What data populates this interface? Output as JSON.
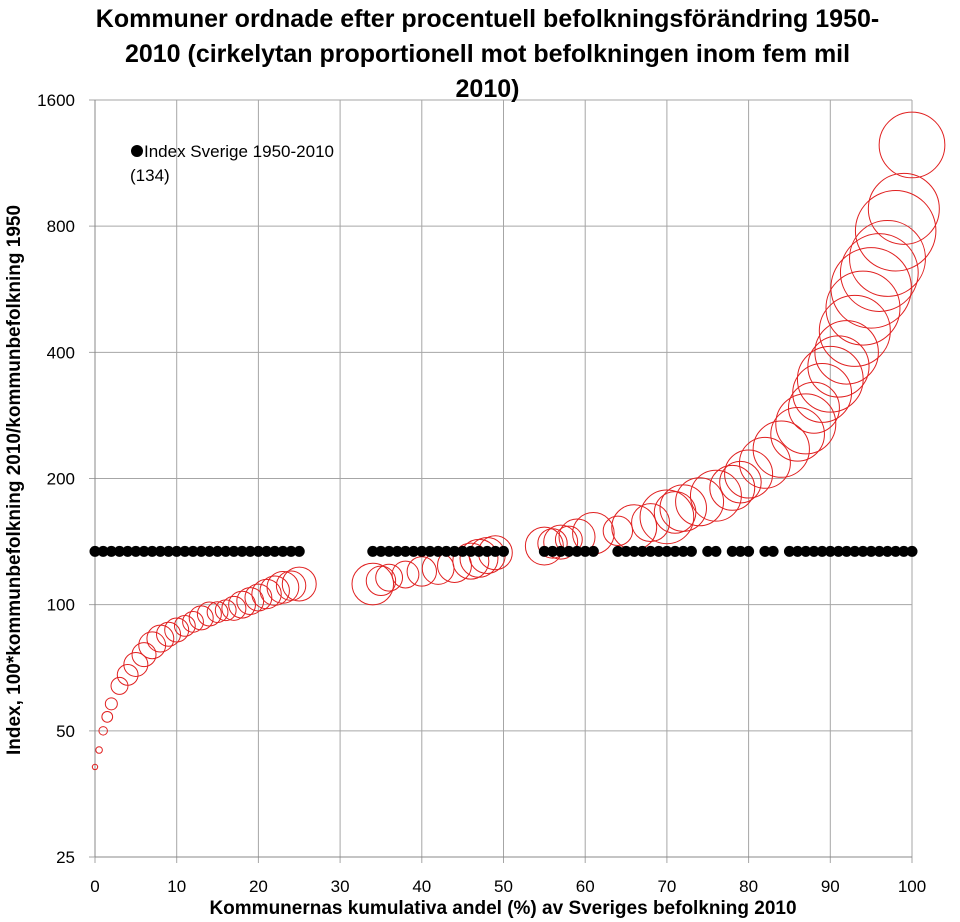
{
  "chart_data": {
    "type": "scatter",
    "title": "Kommuner ordnade efter procentuell befolkningsförändring 1950-2010 (cirkelytan proportionell mot befolkningen inom fem mil 2010)",
    "xlabel": "Kommunernas kumulativa andel (%) av Sveriges befolkning 2010",
    "ylabel": "Index, 100*kommunbefolkning 2010/kommunbefolkning 1950",
    "xlim": [
      0,
      100
    ],
    "xticks": [
      0,
      10,
      20,
      30,
      40,
      50,
      60,
      70,
      80,
      90,
      100
    ],
    "ylim": [
      25,
      1600
    ],
    "yticks": [
      25,
      50,
      100,
      200,
      400,
      800,
      1600
    ],
    "yscale": "log",
    "grid": true,
    "series": [
      {
        "color": "#e02020",
        "x": [
          0,
          0.5,
          1,
          1.5,
          2,
          3,
          4,
          5,
          6,
          7,
          8,
          9,
          10,
          11,
          12,
          13,
          14,
          15,
          16,
          17,
          18,
          19,
          20,
          21,
          22,
          23,
          24,
          25,
          34,
          35,
          36,
          38,
          40,
          42,
          44,
          46,
          47,
          48,
          49,
          55,
          56,
          57,
          58,
          59,
          61,
          64,
          66,
          68,
          70,
          71,
          72,
          74,
          76,
          78,
          79,
          80,
          82,
          84,
          86,
          87,
          88,
          89,
          90,
          91,
          92,
          93,
          94,
          95,
          96,
          97,
          98,
          99,
          100
        ],
        "values": [
          41,
          45,
          50,
          54,
          58,
          64,
          68,
          72,
          76,
          80,
          83,
          85,
          87,
          89,
          91,
          93,
          95,
          96,
          97,
          98,
          100,
          102,
          104,
          106,
          108,
          110,
          111,
          112,
          112,
          114,
          116,
          118,
          120,
          122,
          124,
          127,
          129,
          131,
          133,
          138,
          140,
          141,
          143,
          145,
          148,
          150,
          153,
          157,
          162,
          166,
          170,
          176,
          182,
          190,
          196,
          205,
          218,
          235,
          255,
          270,
          295,
          320,
          345,
          370,
          400,
          450,
          510,
          570,
          620,
          670,
          780,
          880,
          1250
        ],
        "sizes": [
          0.2,
          0.3,
          0.5,
          0.8,
          1,
          2,
          3,
          4,
          4,
          5,
          5,
          4,
          4,
          3,
          3,
          4,
          4,
          3,
          3,
          4,
          5,
          5,
          5,
          6,
          6,
          7,
          6,
          8,
          12,
          6,
          5,
          5,
          6,
          7,
          8,
          9,
          10,
          9,
          8,
          10,
          6,
          8,
          5,
          9,
          12,
          6,
          14,
          10,
          20,
          12,
          15,
          16,
          18,
          14,
          12,
          16,
          18,
          22,
          20,
          25,
          18,
          24,
          30,
          26,
          28,
          35,
          38,
          45,
          42,
          40,
          45,
          35,
          30
        ]
      },
      {
        "name": "Index Sverige 1950-2010 (134)",
        "color": "#000000",
        "x": [
          0,
          1,
          2,
          3,
          4,
          5,
          6,
          7,
          8,
          9,
          10,
          11,
          12,
          13,
          14,
          15,
          16,
          17,
          18,
          19,
          20,
          21,
          22,
          23,
          24,
          25,
          34,
          35,
          36,
          37,
          38,
          39,
          40,
          41,
          42,
          43,
          44,
          45,
          46,
          47,
          48,
          49,
          50,
          55,
          56,
          57,
          58,
          59,
          60,
          61,
          64,
          65,
          66,
          67,
          68,
          69,
          70,
          71,
          72,
          73,
          75,
          76,
          78,
          79,
          80,
          82,
          83,
          85,
          86,
          87,
          88,
          89,
          90,
          91,
          92,
          93,
          94,
          95,
          96,
          97,
          98,
          99,
          100
        ],
        "values": [
          134,
          134,
          134,
          134,
          134,
          134,
          134,
          134,
          134,
          134,
          134,
          134,
          134,
          134,
          134,
          134,
          134,
          134,
          134,
          134,
          134,
          134,
          134,
          134,
          134,
          134,
          134,
          134,
          134,
          134,
          134,
          134,
          134,
          134,
          134,
          134,
          134,
          134,
          134,
          134,
          134,
          134,
          134,
          134,
          134,
          134,
          134,
          134,
          134,
          134,
          134,
          134,
          134,
          134,
          134,
          134,
          134,
          134,
          134,
          134,
          134,
          134,
          134,
          134,
          134,
          134,
          134,
          134,
          134,
          134,
          134,
          134,
          134,
          134,
          134,
          134,
          134,
          134,
          134,
          134,
          134,
          134,
          134
        ]
      }
    ]
  }
}
